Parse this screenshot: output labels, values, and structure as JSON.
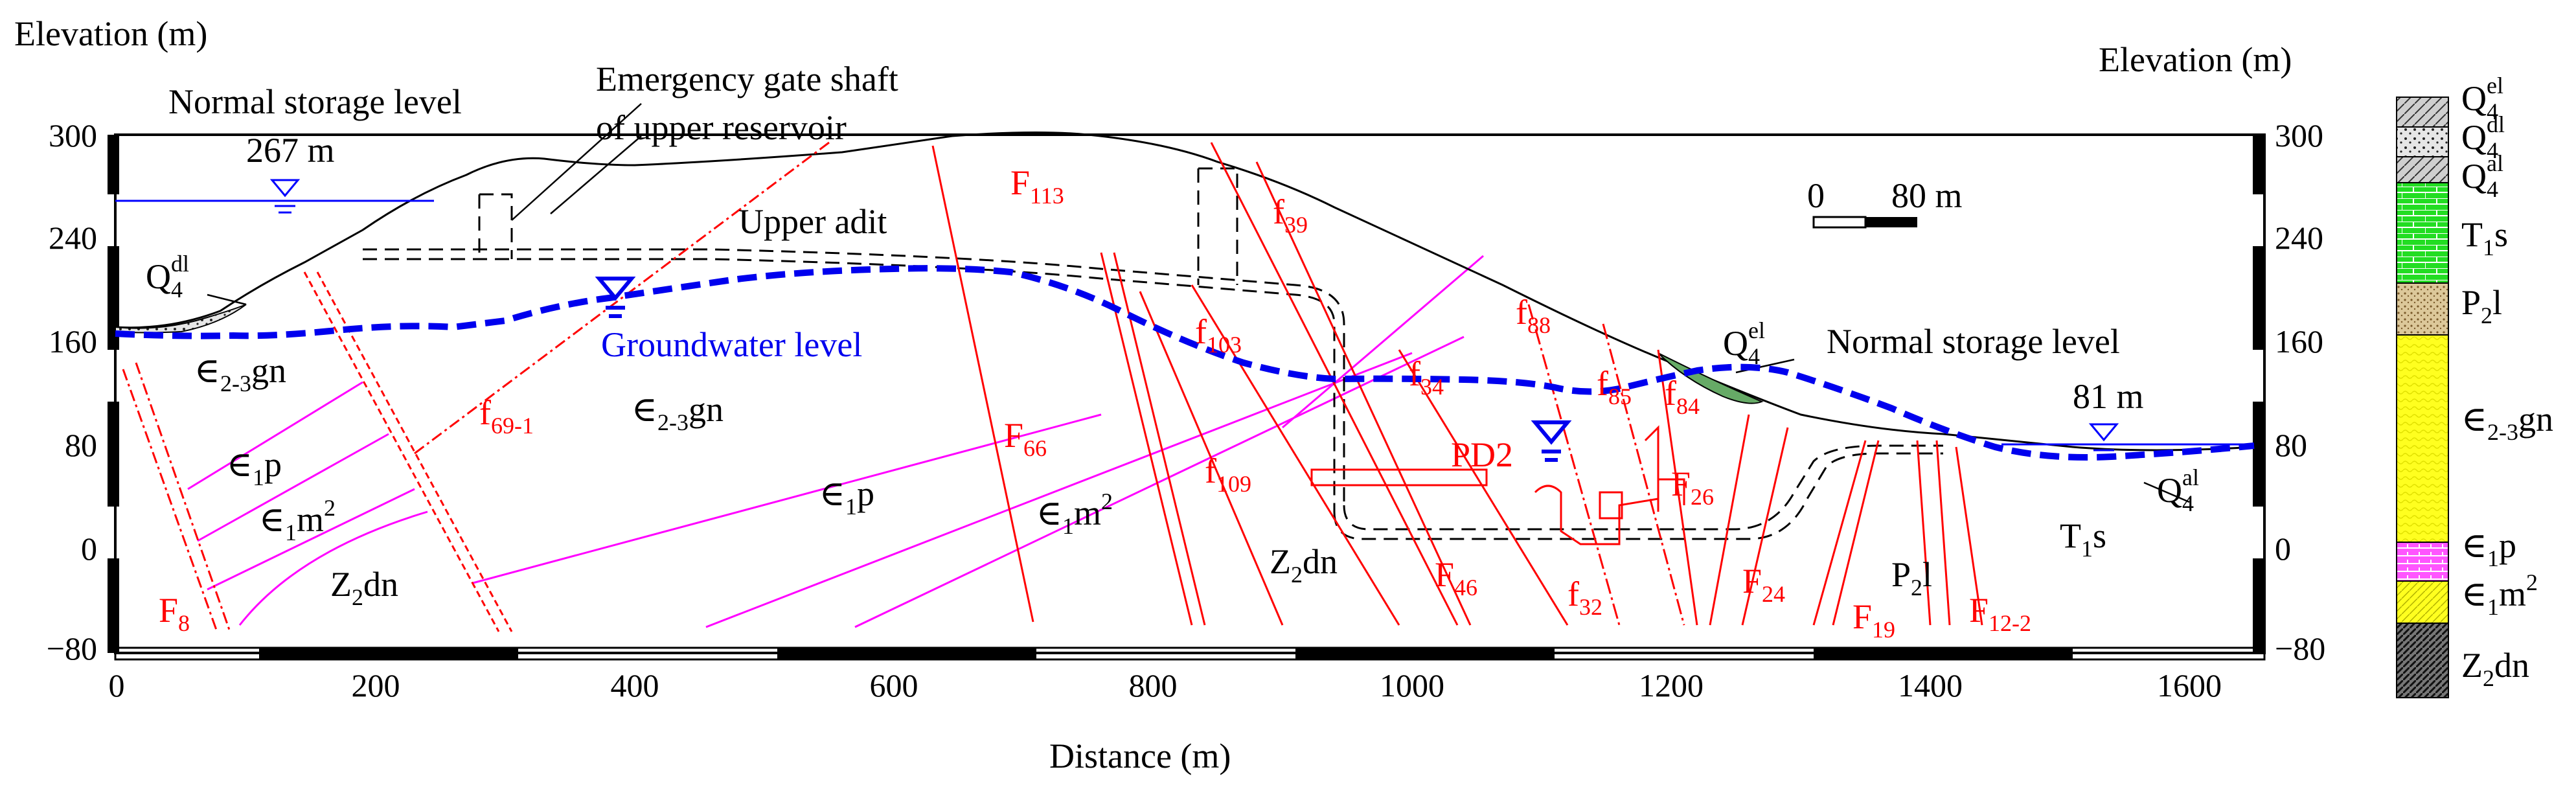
{
  "figure": {
    "left_axis_title": "Elevation (m)",
    "right_axis_title": "Elevation (m)",
    "x_axis_title": "Distance (m)",
    "x_ticks": [
      "0",
      "200",
      "400",
      "600",
      "800",
      "1000",
      "1200",
      "1400",
      "1600"
    ],
    "y_ticks": [
      "300",
      "240",
      "160",
      "80",
      "0",
      "−80"
    ],
    "scale_bar": {
      "zero": "0",
      "length": "80 m"
    }
  },
  "annotations": {
    "upper_level_title": "Normal storage level",
    "upper_level_value": "267 m",
    "lower_level_title": "Normal storage level",
    "lower_level_value": "81 m",
    "gate_shaft_line1": "Emergency gate shaft",
    "gate_shaft_line2": "of upper reservoir",
    "upper_adit": "Upper adit",
    "groundwater": "Groundwater level",
    "pd2": "PD2"
  },
  "strata_labels": {
    "gn_sym": "∈",
    "gn_sub": "2-3",
    "gn_txt": "gn",
    "p_sym": "∈",
    "p_sub": "1",
    "p_txt": "p",
    "m_sym": "∈",
    "m_sub": "1",
    "m_txt": "m",
    "m_sup": "2",
    "z_main": "Z",
    "z_sub": "2",
    "z_txt": "dn",
    "t_main": "T",
    "t_sub": "1",
    "t_txt": "s",
    "pl_main": "P",
    "pl_sub": "2",
    "pl_txt": "l",
    "q_main": "Q",
    "q_sub": "4",
    "q_dl": "dl",
    "q_el": "el",
    "q_al": "al"
  },
  "faults": {
    "F": "F",
    "f": "f",
    "F8": "8",
    "F66": "66",
    "F113": "113",
    "F46": "46",
    "F26": "26",
    "F24": "24",
    "F19": "19",
    "F12_2": "12-2",
    "f69_1": "69-1",
    "f103": "103",
    "f39": "39",
    "f109": "109",
    "f34": "34",
    "f88": "88",
    "f85": "85",
    "f84": "84",
    "f32": "32"
  },
  "colors": {
    "groundwater": "#0000ee",
    "water_line": "#0000ff",
    "fault": "#ff0000",
    "bedding": "#ff00ff",
    "legend_T1s": "#22dd22",
    "legend_P2l": "#dcc89a",
    "legend_gn": "#ffff1f",
    "legend_p": "#ff33ff",
    "legend_m": "#ffff1f"
  }
}
